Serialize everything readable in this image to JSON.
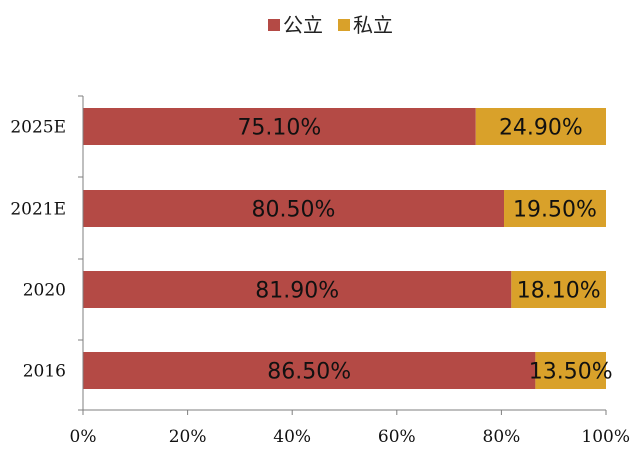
{
  "chart_data": {
    "type": "bar",
    "orientation": "horizontal",
    "stacked": true,
    "categories": [
      "2025E",
      "2021E",
      "2020",
      "2016"
    ],
    "series": [
      {
        "name": "公立",
        "color": "#B44A45",
        "values": [
          75.1,
          80.5,
          81.9,
          86.5
        ],
        "labels": [
          "75.10%",
          "80.50%",
          "81.90%",
          "86.50%"
        ]
      },
      {
        "name": "私立",
        "color": "#D9A12A",
        "values": [
          24.9,
          19.5,
          18.1,
          13.5
        ],
        "labels": [
          "24.90%",
          "19.50%",
          "18.10%",
          "13.50%"
        ]
      }
    ],
    "xlim": [
      0,
      100
    ],
    "xticks": [
      0,
      20,
      40,
      60,
      80,
      100
    ],
    "xtick_labels": [
      "0%",
      "20%",
      "40%",
      "60%",
      "80%",
      "100%"
    ],
    "legend_position": "top-center",
    "grid": false,
    "title": "",
    "xlabel": "",
    "ylabel": ""
  }
}
